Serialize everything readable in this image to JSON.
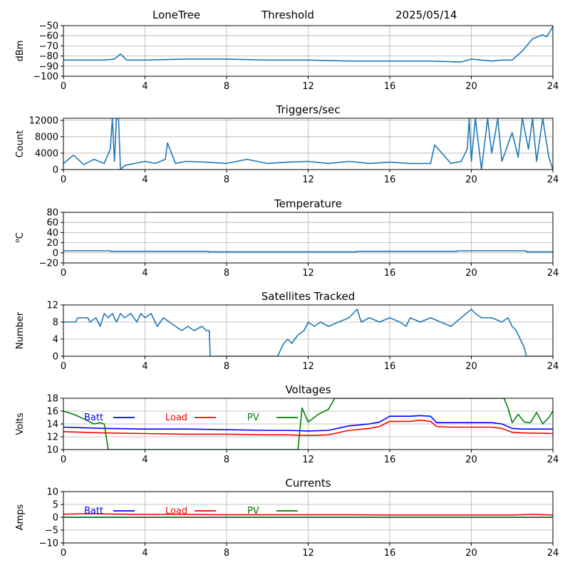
{
  "header": {
    "site": "LoneTree",
    "mode": "Threshold",
    "date": "2025/05/14"
  },
  "chart_data": [
    {
      "type": "line",
      "title": "",
      "xlabel": "",
      "ylabel": "dBm",
      "xlim": [
        0,
        24
      ],
      "ylim": [
        -100,
        -50
      ],
      "xticks": [
        0,
        4,
        8,
        12,
        16,
        20,
        24
      ],
      "yticks": [
        -100,
        -90,
        -80,
        -70,
        -60,
        -50
      ],
      "grid": true,
      "series": [
        {
          "color": "#1f77b4",
          "x": [
            0,
            1,
            2,
            2.5,
            2.8,
            3.1,
            4,
            6,
            8,
            10,
            12,
            14,
            16,
            18,
            19.5,
            20,
            20.5,
            21,
            21.5,
            22,
            22.5,
            23,
            23.5,
            23.7,
            24
          ],
          "y": [
            -84,
            -84,
            -84,
            -83,
            -78,
            -84,
            -84,
            -83,
            -83,
            -84,
            -84,
            -85,
            -85,
            -85,
            -86,
            -83,
            -84,
            -85,
            -84,
            -84,
            -75,
            -63,
            -59,
            -61,
            -51
          ]
        }
      ]
    },
    {
      "type": "line",
      "title": "Triggers/sec",
      "xlabel": "",
      "ylabel": "Count",
      "xlim": [
        0,
        24
      ],
      "ylim": [
        0,
        12500
      ],
      "xticks": [
        0,
        4,
        8,
        12,
        16,
        20,
        24
      ],
      "yticks": [
        0,
        4000,
        8000,
        12000
      ],
      "grid": true,
      "series": [
        {
          "color": "#1f77b4",
          "x": [
            0,
            0.5,
            1,
            1.5,
            2,
            2.3,
            2.4,
            2.5,
            2.6,
            2.7,
            2.8,
            3.0,
            3.5,
            4,
            4.5,
            5,
            5.1,
            5.5,
            6,
            7,
            8,
            9,
            10,
            11,
            12,
            13,
            14,
            15,
            16,
            17,
            18,
            18.2,
            19,
            19.5,
            19.8,
            19.9,
            20,
            20.2,
            20.5,
            20.8,
            21,
            21.3,
            21.5,
            22,
            22.3,
            22.5,
            22.8,
            23,
            23.2,
            23.5,
            23.8,
            24
          ],
          "y": [
            1500,
            3500,
            1200,
            2500,
            1500,
            5000,
            12500,
            2000,
            12500,
            12500,
            0,
            1000,
            1500,
            2000,
            1500,
            2500,
            6500,
            1500,
            2000,
            1800,
            1500,
            2500,
            1500,
            1800,
            2000,
            1500,
            2000,
            1500,
            1800,
            1500,
            1500,
            6000,
            1500,
            2000,
            5000,
            12500,
            2000,
            12500,
            0,
            12500,
            4000,
            12500,
            2000,
            9000,
            3000,
            12500,
            5000,
            12500,
            2000,
            12500,
            3000,
            0
          ]
        }
      ]
    },
    {
      "type": "line",
      "title": "Temperature",
      "xlabel": "",
      "ylabel": "oC",
      "xlim": [
        0,
        24
      ],
      "ylim": [
        -20,
        80
      ],
      "xticks": [
        0,
        4,
        8,
        12,
        16,
        20,
        24
      ],
      "yticks": [
        -20,
        0,
        20,
        40,
        60,
        80
      ],
      "grid": true,
      "series": [
        {
          "color": "#1f77b4",
          "x": [
            0,
            2.3,
            2.3,
            7.1,
            7.1,
            14.4,
            14.4,
            19.3,
            19.3,
            22.7,
            22.7,
            24
          ],
          "y": [
            4,
            4,
            3,
            3,
            2,
            2,
            3,
            3,
            4,
            4,
            2,
            2
          ]
        }
      ]
    },
    {
      "type": "line",
      "title": "Satellites Tracked",
      "xlabel": "",
      "ylabel": "Number",
      "xlim": [
        0,
        24
      ],
      "ylim": [
        0,
        12
      ],
      "xticks": [
        0,
        4,
        8,
        12,
        16,
        20,
        24
      ],
      "yticks": [
        0,
        4,
        8,
        12
      ],
      "grid": true,
      "series": [
        {
          "color": "#1f77b4",
          "x": [
            0,
            0.6,
            0.7,
            1.2,
            1.3,
            1.6,
            1.8,
            2.0,
            2.2,
            2.4,
            2.6,
            2.8,
            3.0,
            3.3,
            3.6,
            3.8,
            4.0,
            4.3,
            4.6,
            4.9,
            5.2,
            5.5,
            5.8,
            6.1,
            6.4,
            6.8,
            7.0,
            7.15,
            7.2,
            8,
            9,
            10,
            10.5,
            10.6,
            10.8,
            11,
            11.2,
            11.5,
            11.8,
            12,
            12.3,
            12.6,
            13,
            13.5,
            14,
            14.4,
            14.6,
            15,
            15.5,
            16,
            16.5,
            16.8,
            17,
            17.5,
            18,
            18.5,
            19,
            19.5,
            20,
            20.2,
            20.5,
            21,
            21.5,
            21.8,
            22,
            22.2,
            22.4,
            22.6,
            22.7,
            23,
            24
          ],
          "y": [
            8,
            8,
            9,
            9,
            8,
            9,
            7,
            10,
            9,
            10,
            8,
            10,
            9,
            10,
            8,
            10,
            9,
            10,
            7,
            9,
            8,
            7,
            6,
            7,
            6,
            7,
            6,
            6,
            0,
            0,
            0,
            0,
            0,
            1,
            3,
            4,
            3,
            5,
            6,
            8,
            7,
            8,
            7,
            8,
            9,
            11,
            8,
            9,
            8,
            9,
            8,
            7,
            9,
            8,
            9,
            8,
            7,
            9,
            11,
            10,
            9,
            9,
            8,
            9,
            7,
            6,
            4,
            2,
            0,
            0,
            0
          ]
        }
      ]
    },
    {
      "type": "line",
      "title": "Voltages",
      "xlabel": "",
      "ylabel": "Volts",
      "xlim": [
        0,
        24
      ],
      "ylim": [
        10,
        18
      ],
      "xticks": [
        0,
        4,
        8,
        12,
        16,
        20,
        24
      ],
      "yticks": [
        10,
        12,
        14,
        16,
        18
      ],
      "grid": true,
      "legend": "top-left, horizontal",
      "series": [
        {
          "name": "Batt",
          "color": "#0000ff",
          "x": [
            0,
            1,
            2,
            4,
            6,
            8,
            10,
            11,
            12,
            13,
            14,
            15,
            15.5,
            16,
            17,
            17.5,
            18,
            18.3,
            19,
            20,
            21,
            21.5,
            22,
            22.5,
            24
          ],
          "y": [
            13.5,
            13.4,
            13.3,
            13.2,
            13.2,
            13.1,
            13.0,
            13.0,
            12.9,
            13.0,
            13.7,
            14.0,
            14.3,
            15.2,
            15.2,
            15.3,
            15.2,
            14.2,
            14.2,
            14.2,
            14.2,
            14.0,
            13.3,
            13.2,
            13.2
          ]
        },
        {
          "name": "Load",
          "color": "#ff0000",
          "x": [
            0,
            1,
            2,
            4,
            6,
            8,
            10,
            11,
            12,
            13,
            14,
            15,
            15.5,
            16,
            17,
            17.5,
            18,
            18.3,
            19,
            20,
            21,
            21.5,
            22,
            22.5,
            24
          ],
          "y": [
            12.8,
            12.7,
            12.6,
            12.5,
            12.4,
            12.4,
            12.3,
            12.3,
            12.2,
            12.3,
            13.0,
            13.3,
            13.6,
            14.4,
            14.4,
            14.6,
            14.4,
            13.6,
            13.5,
            13.5,
            13.5,
            13.3,
            12.7,
            12.6,
            12.5
          ]
        },
        {
          "name": "PV",
          "color": "#008000",
          "x": [
            0,
            0.5,
            1,
            1.5,
            1.8,
            2.0,
            2.1,
            2.2,
            11.5,
            11.7,
            12,
            12.5,
            13,
            13.3,
            21.6,
            21.8,
            22,
            22.3,
            22.6,
            22.9,
            23.2,
            23.5,
            23.8,
            24
          ],
          "y": [
            16,
            15.5,
            14.8,
            14.0,
            14.2,
            14.0,
            12,
            10,
            10,
            16.5,
            14.3,
            15.5,
            16.3,
            18,
            18,
            16.5,
            14.2,
            15.5,
            14.3,
            14.2,
            15.8,
            14.0,
            15.0,
            16.0
          ]
        }
      ]
    },
    {
      "type": "line",
      "title": "Currents",
      "xlabel": "",
      "ylabel": "Amps",
      "xlim": [
        0,
        24
      ],
      "ylim": [
        -10,
        10
      ],
      "xticks": [
        0,
        4,
        8,
        12,
        16,
        20,
        24
      ],
      "yticks": [
        -10,
        -5,
        0,
        5,
        10
      ],
      "grid": true,
      "legend": "top-left, horizontal",
      "series": [
        {
          "name": "Batt",
          "color": "#0000ff",
          "x": [
            0,
            24
          ],
          "y": [
            0,
            0
          ]
        },
        {
          "name": "Load",
          "color": "#ff0000",
          "x": [
            0,
            1,
            2,
            3,
            4,
            6,
            8,
            10,
            12,
            14,
            16,
            18,
            20,
            22,
            23,
            24
          ],
          "y": [
            1.2,
            1.4,
            1.3,
            1.2,
            1.1,
            1.1,
            1.0,
            1.0,
            1.0,
            1.0,
            0.9,
            0.9,
            0.9,
            0.9,
            1.1,
            0.9
          ]
        },
        {
          "name": "PV",
          "color": "#008000",
          "x": [
            0,
            24
          ],
          "y": [
            0,
            0
          ]
        }
      ]
    }
  ]
}
